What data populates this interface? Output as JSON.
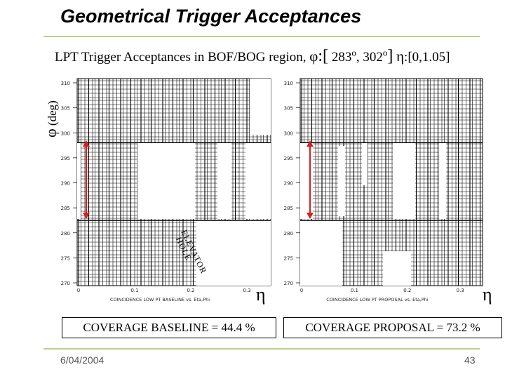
{
  "slide": {
    "title": "Geometrical Trigger Acceptances",
    "subtitle": {
      "text": "LPT Trigger Acceptances in BOF/BOG region,",
      "phi_symbol": "φ",
      "phi_open": ":[",
      "phi_min": "283",
      "phi_sep": ", 302",
      "deg": "o",
      "phi_close": "]",
      "eta_symbol": "η",
      "eta_range": ":[0,1.05]"
    },
    "y_axis_label": {
      "symbol": "φ",
      "unit": "(deg)"
    },
    "left_plot": {
      "y_ticks": [
        "310",
        "305",
        "300",
        "295",
        "290",
        "285",
        "280",
        "275",
        "270"
      ],
      "x_ticks": [
        "0",
        "0.1",
        "0.2",
        "0.3"
      ],
      "x_caption": "COINCIDENCE LOW PT BASELINE vs. Eta,Phi",
      "eta_label": "η",
      "elevator_label_1": "ELEVATOR",
      "elevator_label_2": "HOLE",
      "coverage": "COVERAGE BASELINE = 44.4 %"
    },
    "right_plot": {
      "y_ticks": [
        "310",
        "305",
        "300",
        "295",
        "290",
        "285",
        "280",
        "275",
        "270"
      ],
      "x_ticks": [
        "0",
        "0.1",
        "0.2",
        "0.3"
      ],
      "x_caption": "COINCIDENCE LOW PT PROPOSAL vs. Eta,Phi",
      "eta_label": "η",
      "coverage": "COVERAGE PROPOSAL = 73.2 %"
    },
    "footer": {
      "date": "6/04/2004",
      "page": "43"
    },
    "colors": {
      "accent_rule": "#b8d08a",
      "arrow": "#d62020"
    }
  }
}
